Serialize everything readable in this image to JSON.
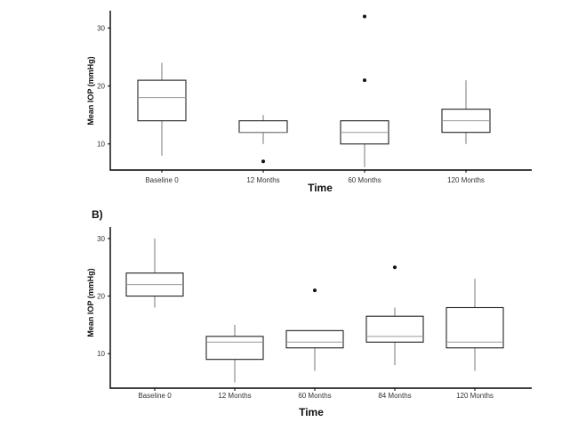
{
  "chart_data": [
    {
      "type": "box",
      "panel_label": "",
      "xlabel": "Time",
      "ylabel": "Mean IOP (mmHg)",
      "ylim": [
        5.5,
        33
      ],
      "yticks": [
        10,
        20,
        30
      ],
      "categories": [
        "Baseline 0",
        "12 Months",
        "60 Months",
        "120 Months"
      ],
      "boxes": [
        {
          "min": 8,
          "q1": 14,
          "median": 18,
          "q3": 21,
          "max": 24,
          "outliers": []
        },
        {
          "min": 10,
          "q1": 12,
          "median": 12,
          "q3": 14,
          "max": 15,
          "outliers": [
            7
          ]
        },
        {
          "min": 6,
          "q1": 10,
          "median": 12,
          "q3": 14,
          "max": 14,
          "outliers": [
            21,
            32
          ]
        },
        {
          "min": 10,
          "q1": 12,
          "median": 14,
          "q3": 16,
          "max": 21,
          "outliers": []
        }
      ]
    },
    {
      "type": "box",
      "panel_label": "B)",
      "xlabel": "Time",
      "ylabel": "Mean IOP (mmHg)",
      "ylim": [
        4,
        32
      ],
      "yticks": [
        10,
        20,
        30
      ],
      "categories": [
        "Baseline 0",
        "12 Months",
        "60 Months",
        "84 Months",
        "120 Months"
      ],
      "boxes": [
        {
          "min": 18,
          "q1": 20,
          "median": 22,
          "q3": 24,
          "max": 30,
          "outliers": []
        },
        {
          "min": 5,
          "q1": 9,
          "median": 12,
          "q3": 13,
          "max": 15,
          "outliers": []
        },
        {
          "min": 7,
          "q1": 11,
          "median": 12,
          "q3": 14,
          "max": 14,
          "outliers": [
            21
          ]
        },
        {
          "min": 8,
          "q1": 12,
          "median": 13,
          "q3": 16.5,
          "max": 18,
          "outliers": [
            25
          ]
        },
        {
          "min": 7,
          "q1": 11,
          "median": 12,
          "q3": 18,
          "max": 23,
          "outliers": []
        }
      ]
    }
  ]
}
